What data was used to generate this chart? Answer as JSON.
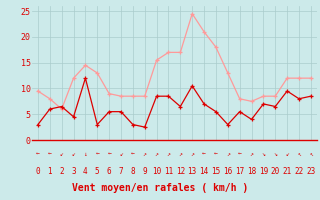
{
  "x": [
    0,
    1,
    2,
    3,
    4,
    5,
    6,
    7,
    8,
    9,
    10,
    11,
    12,
    13,
    14,
    15,
    16,
    17,
    18,
    19,
    20,
    21,
    22,
    23
  ],
  "wind_mean": [
    3,
    6,
    6.5,
    4.5,
    12,
    3,
    5.5,
    5.5,
    3,
    2.5,
    8.5,
    8.5,
    6.5,
    10.5,
    7,
    5.5,
    3,
    5.5,
    4,
    7,
    6.5,
    9.5,
    8,
    8.5
  ],
  "wind_gust": [
    9.5,
    8,
    6,
    12,
    14.5,
    13,
    9,
    8.5,
    8.5,
    8.5,
    15.5,
    17,
    17,
    24.5,
    21,
    18,
    13,
    8,
    7.5,
    8.5,
    8.5,
    12,
    12,
    12
  ],
  "mean_color": "#dd0000",
  "gust_color": "#ff9999",
  "bg_color": "#cceaea",
  "grid_color": "#aacccc",
  "xlabel": "Vent moyen/en rafales ( km/h )",
  "xlabel_color": "#dd0000",
  "tick_color": "#dd0000",
  "ylim": [
    0,
    26
  ],
  "yticks": [
    0,
    5,
    10,
    15,
    20,
    25
  ],
  "arrows": [
    "←",
    "←",
    "↙",
    "↙",
    "↓",
    "←",
    "←",
    "↙",
    "←",
    "↗",
    "↗",
    "↗",
    "↗",
    "↗",
    "←",
    "←",
    "↗",
    "←",
    "↗",
    "↘",
    "↘",
    "↙",
    "↖",
    "↖"
  ]
}
